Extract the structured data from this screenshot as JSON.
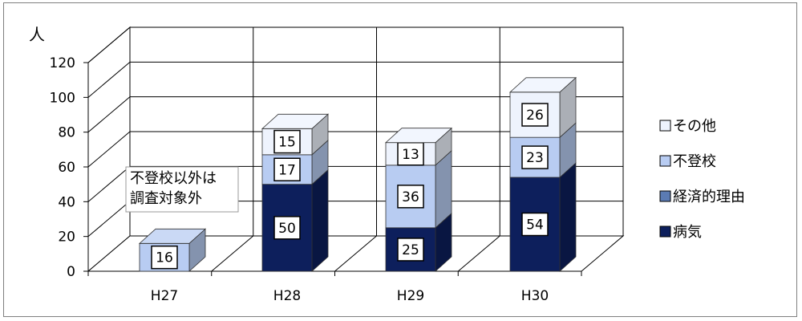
{
  "chart_data": {
    "type": "bar",
    "stacked": true,
    "three_d": true,
    "title": "",
    "ylabel": "人",
    "xlabel": "",
    "ylim": [
      0,
      120
    ],
    "yticks": [
      "0",
      "20",
      "40",
      "60",
      "80",
      "100",
      "120"
    ],
    "grid": true,
    "legend_position": "right",
    "categories": [
      "H27",
      "H28",
      "H29",
      "H30"
    ],
    "series": [
      {
        "name": "病気",
        "color": "#0d1f5c",
        "values": [
          null,
          50,
          25,
          54
        ]
      },
      {
        "name": "経済的理由",
        "color": "#5b7bb3",
        "values": [
          null,
          0,
          0,
          0
        ]
      },
      {
        "name": "不登校",
        "color": "#b8ccf2",
        "values": [
          16,
          17,
          36,
          23
        ]
      },
      {
        "name": "その他",
        "color": "#eef3fd",
        "values": [
          null,
          15,
          13,
          26
        ]
      }
    ],
    "legend_order": [
      "その他",
      "不登校",
      "経済的理由",
      "病気"
    ],
    "annotation": [
      "不登校以外は",
      "調査対象外"
    ]
  }
}
